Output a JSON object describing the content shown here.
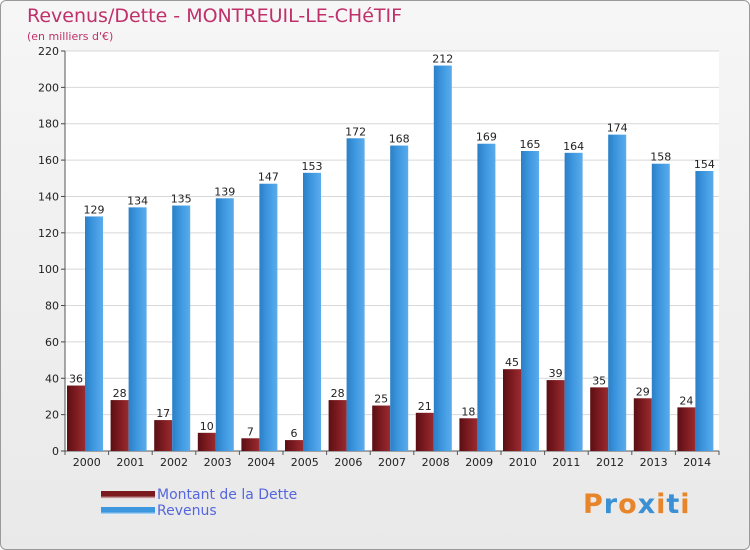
{
  "header": {
    "title": "Revenus/Dette - MONTREUIL-LE-CHéTIF",
    "subtitle": "(en milliers d'€)"
  },
  "brand": {
    "text": "Proxiti",
    "letter_colors": [
      "#e8852a",
      "#3b8fd4",
      "#e8852a",
      "#3b8fd4",
      "#e8852a",
      "#3b8fd4",
      "#e8852a"
    ]
  },
  "colors": {
    "dette": "#7a1a1f",
    "revenus": "#3d97df",
    "title": "#c0306a",
    "legend_text": "#5566dd"
  },
  "chart_data": {
    "type": "bar",
    "categories": [
      "2000",
      "2001",
      "2002",
      "2003",
      "2004",
      "2005",
      "2006",
      "2007",
      "2008",
      "2009",
      "2010",
      "2011",
      "2012",
      "2013",
      "2014"
    ],
    "series": [
      {
        "name": "Montant de la Dette",
        "values": [
          36,
          28,
          17,
          10,
          7,
          6,
          28,
          25,
          21,
          18,
          45,
          39,
          35,
          29,
          24
        ]
      },
      {
        "name": "Revenus",
        "values": [
          129,
          134,
          135,
          139,
          147,
          153,
          172,
          168,
          212,
          169,
          165,
          164,
          174,
          158,
          154
        ]
      }
    ],
    "ylim": [
      0,
      220
    ],
    "yticks": [
      0,
      20,
      40,
      60,
      80,
      100,
      120,
      140,
      160,
      180,
      200,
      220
    ],
    "grid": true,
    "legend_position": "bottom-left"
  }
}
